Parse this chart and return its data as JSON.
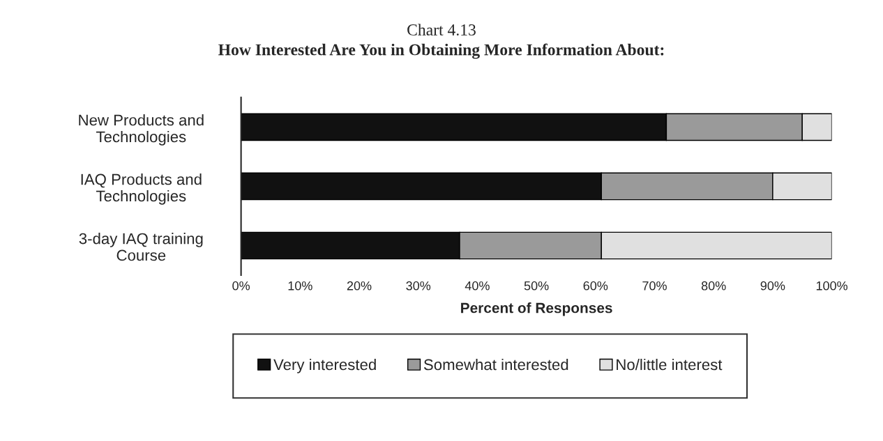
{
  "chart_data": {
    "type": "bar",
    "orientation": "horizontal",
    "stacked": true,
    "title": "Chart 4.13",
    "subtitle": "How Interested Are You in Obtaining More Information About:",
    "xlabel": "Percent of Responses",
    "categories": [
      "New Products and\nTechnologies",
      "IAQ Products and\nTechnologies",
      "3-day IAQ training\nCourse"
    ],
    "series": [
      {
        "name": "Very interested",
        "color": "#111111",
        "values": [
          72,
          61,
          37
        ]
      },
      {
        "name": "Somewhat interested",
        "color": "#9a9a9a",
        "values": [
          23,
          29,
          24
        ]
      },
      {
        "name": "No/little interest",
        "color": "#e0e0e0",
        "values": [
          5,
          10,
          39
        ]
      }
    ],
    "xlim": [
      0,
      100
    ],
    "xticks": [
      {
        "value": 0,
        "label": "0%"
      },
      {
        "value": 10,
        "label": "10%"
      },
      {
        "value": 20,
        "label": "20%"
      },
      {
        "value": 30,
        "label": "30%"
      },
      {
        "value": 40,
        "label": "40%"
      },
      {
        "value": 50,
        "label": "50%"
      },
      {
        "value": 60,
        "label": "60%"
      },
      {
        "value": 70,
        "label": "70%"
      },
      {
        "value": 80,
        "label": "80%"
      },
      {
        "value": 90,
        "label": "90%"
      },
      {
        "value": 100,
        "label": "100%"
      }
    ],
    "grid": false,
    "legend": "bottom"
  }
}
